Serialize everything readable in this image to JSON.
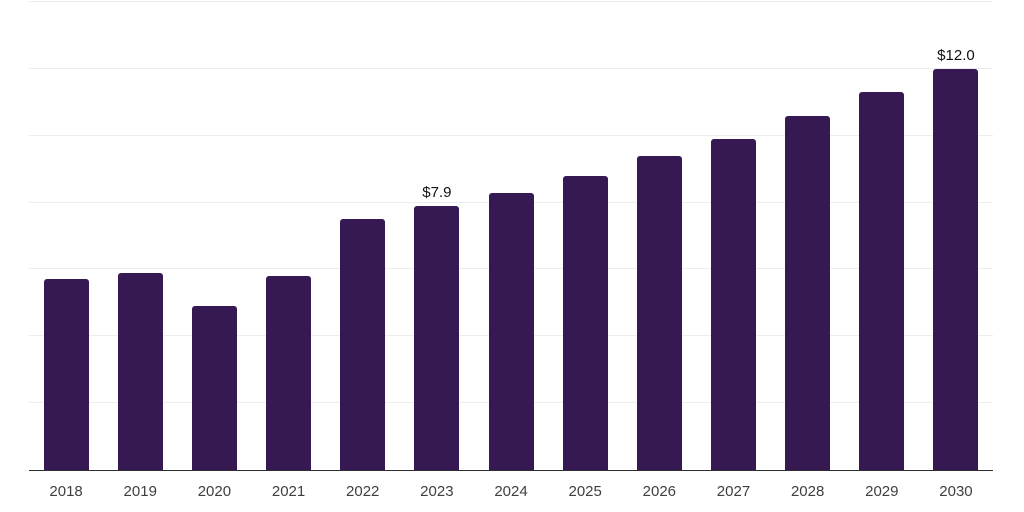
{
  "chart_data": {
    "type": "bar",
    "title": "",
    "xlabel": "",
    "ylabel": "",
    "categories": [
      "2018",
      "2019",
      "2020",
      "2021",
      "2022",
      "2023",
      "2024",
      "2025",
      "2026",
      "2027",
      "2028",
      "2029",
      "2030"
    ],
    "values": [
      5.7,
      5.9,
      4.9,
      5.8,
      7.5,
      7.9,
      8.3,
      8.8,
      9.4,
      9.9,
      10.6,
      11.3,
      12.0
    ],
    "data_labels": [
      "",
      "",
      "",
      "",
      "",
      "$7.9",
      "",
      "",
      "",
      "",
      "",
      "",
      "$12.0"
    ],
    "ylim": [
      0,
      14
    ],
    "gridline_step": 2,
    "grid": true,
    "legend": "none",
    "colors": {
      "bar": "#361853",
      "gridline": "#ededed",
      "axis_line": "#2d2d2d",
      "tick_label": "#3f3f3f",
      "data_label": "#111111",
      "background": "#ffffff"
    }
  }
}
